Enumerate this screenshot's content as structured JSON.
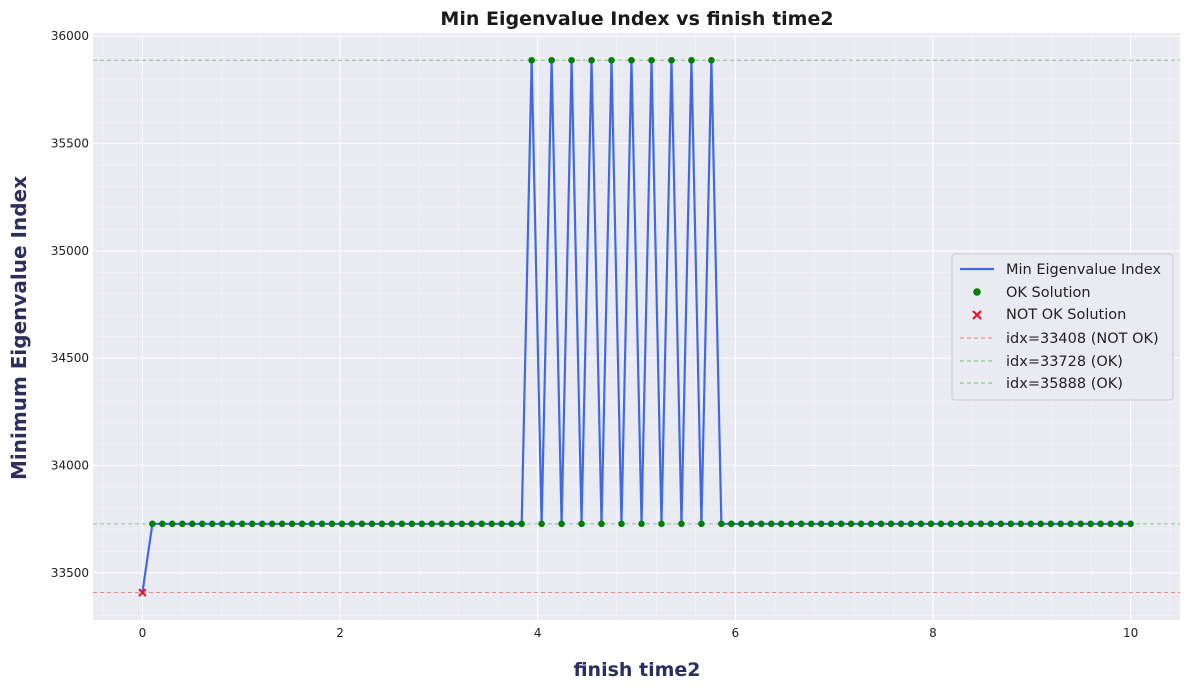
{
  "chart_data": {
    "type": "line",
    "title": "Min Eigenvalue Index vs finish time2",
    "xlabel": "finish time2",
    "ylabel": "Minimum Eigenvalue Index",
    "xlim": [
      -0.5,
      10.5
    ],
    "ylim": [
      33280,
      36015
    ],
    "x_ticks": [
      0,
      2,
      4,
      6,
      8,
      10
    ],
    "y_ticks": [
      33500,
      34000,
      34500,
      35000,
      35500,
      36000
    ],
    "grid": true,
    "legend_position": "center-right",
    "series": [
      {
        "name": "Min Eigenvalue Index",
        "kind": "line",
        "color": "#4169e1",
        "x": [
          0,
          0.101,
          0.202,
          0.303,
          0.404,
          0.505,
          0.606,
          0.707,
          0.808,
          0.909,
          1.01,
          1.111,
          1.212,
          1.313,
          1.414,
          1.515,
          1.616,
          1.717,
          1.818,
          1.919,
          2.02,
          2.121,
          2.222,
          2.323,
          2.424,
          2.525,
          2.626,
          2.727,
          2.828,
          2.929,
          3.03,
          3.131,
          3.232,
          3.333,
          3.434,
          3.535,
          3.636,
          3.737,
          3.838,
          3.939,
          4.04,
          4.141,
          4.242,
          4.343,
          4.444,
          4.545,
          4.646,
          4.747,
          4.848,
          4.949,
          5.051,
          5.152,
          5.253,
          5.354,
          5.455,
          5.556,
          5.657,
          5.758,
          5.859,
          5.96,
          6.061,
          6.162,
          6.263,
          6.364,
          6.465,
          6.566,
          6.667,
          6.768,
          6.869,
          6.97,
          7.071,
          7.172,
          7.273,
          7.374,
          7.475,
          7.576,
          7.677,
          7.778,
          7.879,
          7.98,
          8.081,
          8.182,
          8.283,
          8.384,
          8.485,
          8.586,
          8.687,
          8.788,
          8.889,
          8.99,
          9.091,
          9.192,
          9.293,
          9.394,
          9.495,
          9.596,
          9.697,
          9.798,
          9.899,
          10
        ],
        "values": [
          33408,
          33728,
          33728,
          33728,
          33728,
          33728,
          33728,
          33728,
          33728,
          33728,
          33728,
          33728,
          33728,
          33728,
          33728,
          33728,
          33728,
          33728,
          33728,
          33728,
          33728,
          33728,
          33728,
          33728,
          33728,
          33728,
          33728,
          33728,
          33728,
          33728,
          33728,
          33728,
          33728,
          33728,
          33728,
          33728,
          33728,
          33728,
          33728,
          35888,
          33728,
          35888,
          33728,
          35888,
          33728,
          35888,
          33728,
          35888,
          33728,
          35888,
          33728,
          35888,
          33728,
          35888,
          33728,
          35888,
          33728,
          35888,
          33728,
          33728,
          33728,
          33728,
          33728,
          33728,
          33728,
          33728,
          33728,
          33728,
          33728,
          33728,
          33728,
          33728,
          33728,
          33728,
          33728,
          33728,
          33728,
          33728,
          33728,
          33728,
          33728,
          33728,
          33728,
          33728,
          33728,
          33728,
          33728,
          33728,
          33728,
          33728,
          33728,
          33728,
          33728,
          33728,
          33728,
          33728,
          33728,
          33728,
          33728,
          33728
        ]
      },
      {
        "name": "OK Solution",
        "kind": "scatter",
        "marker": "circle",
        "color": "#008000"
      },
      {
        "name": "NOT OK Solution",
        "kind": "scatter",
        "marker": "x",
        "color": "#e8112d"
      }
    ],
    "reference_lines": [
      {
        "label": "idx=33408 (NOT OK)",
        "value": 33408,
        "color": "#f08080"
      },
      {
        "label": "idx=33728 (OK)",
        "value": 33728,
        "color": "#7fbf7f"
      },
      {
        "label": "idx=35888 (OK)",
        "value": 35888,
        "color": "#7fbf7f"
      }
    ]
  },
  "colors": {
    "background": "#ffffff",
    "plot_area": "#eaeaf2",
    "grid_major": "#ffffff",
    "title_color": "#1a1a1a",
    "axis_label_color": "#2e2e5e"
  }
}
